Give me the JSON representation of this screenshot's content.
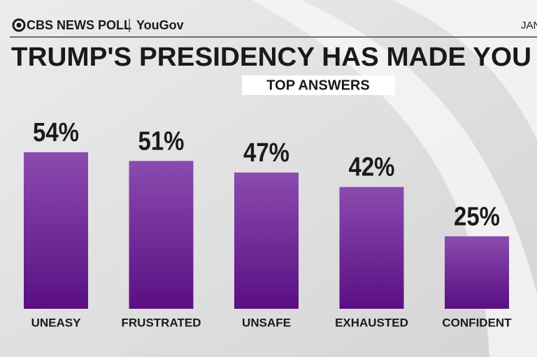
{
  "header": {
    "source": "CBS NEWS POLL",
    "partner": "YouGov",
    "date": "JAN"
  },
  "chart_data": {
    "type": "bar",
    "title": "TRUMP'S PRESIDENCY HAS MADE YOU",
    "subtitle": "TOP ANSWERS",
    "categories": [
      "UNEASY",
      "FRUSTRATED",
      "UNSAFE",
      "EXHAUSTED",
      "CONFIDENT"
    ],
    "values": [
      54,
      51,
      47,
      42,
      25
    ],
    "value_labels": [
      "54%",
      "51%",
      "47%",
      "42%",
      "25%"
    ],
    "color": "#7a3aa0"
  }
}
